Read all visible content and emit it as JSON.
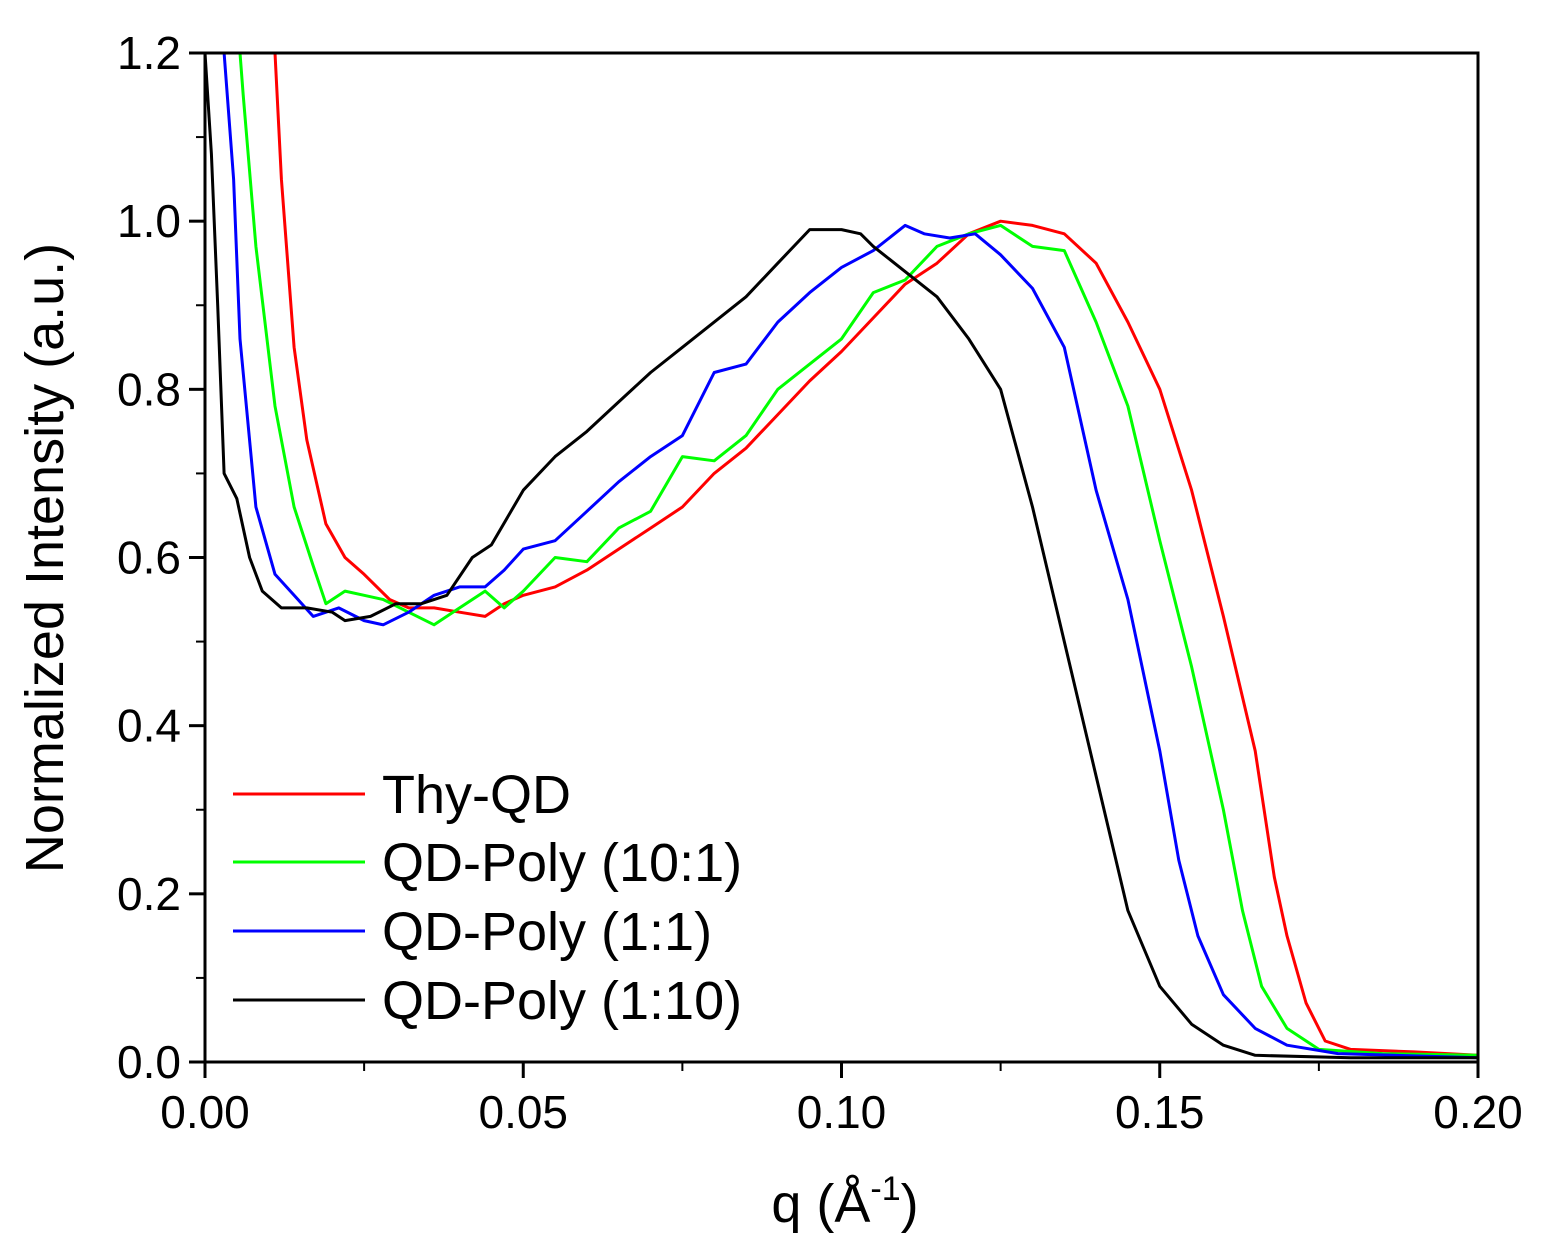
{
  "chart_data": {
    "type": "line",
    "title": "",
    "xlabel": "q (Å⁻¹)",
    "xlabel_parts": {
      "base": "q (",
      "unit": "Å",
      "sup": "-1",
      "close": ")"
    },
    "ylabel": "Normalized Intensity (a.u.)",
    "xlim": [
      0.0,
      0.2
    ],
    "ylim": [
      0.0,
      1.2
    ],
    "xticks": [
      {
        "value": 0.0,
        "label": "0.00"
      },
      {
        "value": 0.05,
        "label": "0.05"
      },
      {
        "value": 0.1,
        "label": "0.10"
      },
      {
        "value": 0.15,
        "label": "0.15"
      },
      {
        "value": 0.2,
        "label": "0.20"
      }
    ],
    "yticks": [
      {
        "value": 0.0,
        "label": "0.0"
      },
      {
        "value": 0.2,
        "label": "0.2"
      },
      {
        "value": 0.4,
        "label": "0.4"
      },
      {
        "value": 0.6,
        "label": "0.6"
      },
      {
        "value": 0.8,
        "label": "0.8"
      },
      {
        "value": 1.0,
        "label": "1.0"
      },
      {
        "value": 1.2,
        "label": "1.2"
      }
    ],
    "x_minor_step": 0.025,
    "y_minor_step": 0.1,
    "grid": false,
    "legend_position": "bottom-left",
    "series": [
      {
        "name": "Thy-QD",
        "color": "#ff0000",
        "points": [
          [
            0.011,
            1.2
          ],
          [
            0.012,
            1.05
          ],
          [
            0.014,
            0.85
          ],
          [
            0.016,
            0.74
          ],
          [
            0.019,
            0.64
          ],
          [
            0.022,
            0.6
          ],
          [
            0.025,
            0.58
          ],
          [
            0.029,
            0.55
          ],
          [
            0.032,
            0.54
          ],
          [
            0.036,
            0.54
          ],
          [
            0.04,
            0.535
          ],
          [
            0.044,
            0.53
          ],
          [
            0.047,
            0.545
          ],
          [
            0.05,
            0.555
          ],
          [
            0.055,
            0.565
          ],
          [
            0.06,
            0.585
          ],
          [
            0.065,
            0.61
          ],
          [
            0.07,
            0.635
          ],
          [
            0.075,
            0.66
          ],
          [
            0.08,
            0.7
          ],
          [
            0.085,
            0.73
          ],
          [
            0.09,
            0.77
          ],
          [
            0.095,
            0.81
          ],
          [
            0.1,
            0.845
          ],
          [
            0.105,
            0.885
          ],
          [
            0.11,
            0.925
          ],
          [
            0.115,
            0.95
          ],
          [
            0.12,
            0.985
          ],
          [
            0.125,
            1.0
          ],
          [
            0.13,
            0.995
          ],
          [
            0.135,
            0.985
          ],
          [
            0.14,
            0.95
          ],
          [
            0.145,
            0.88
          ],
          [
            0.15,
            0.8
          ],
          [
            0.155,
            0.68
          ],
          [
            0.16,
            0.53
          ],
          [
            0.165,
            0.37
          ],
          [
            0.168,
            0.22
          ],
          [
            0.17,
            0.15
          ],
          [
            0.173,
            0.07
          ],
          [
            0.176,
            0.025
          ],
          [
            0.18,
            0.015
          ],
          [
            0.19,
            0.012
          ],
          [
            0.2,
            0.008
          ]
        ]
      },
      {
        "name": "QD-Poly (10:1)",
        "color": "#00ff00",
        "points": [
          [
            0.0055,
            1.2
          ],
          [
            0.006,
            1.15
          ],
          [
            0.008,
            0.97
          ],
          [
            0.011,
            0.78
          ],
          [
            0.014,
            0.66
          ],
          [
            0.017,
            0.59
          ],
          [
            0.019,
            0.545
          ],
          [
            0.022,
            0.56
          ],
          [
            0.025,
            0.555
          ],
          [
            0.028,
            0.55
          ],
          [
            0.032,
            0.535
          ],
          [
            0.036,
            0.52
          ],
          [
            0.04,
            0.54
          ],
          [
            0.044,
            0.56
          ],
          [
            0.047,
            0.54
          ],
          [
            0.05,
            0.56
          ],
          [
            0.055,
            0.6
          ],
          [
            0.06,
            0.595
          ],
          [
            0.065,
            0.635
          ],
          [
            0.07,
            0.655
          ],
          [
            0.075,
            0.72
          ],
          [
            0.08,
            0.715
          ],
          [
            0.085,
            0.745
          ],
          [
            0.09,
            0.8
          ],
          [
            0.095,
            0.83
          ],
          [
            0.1,
            0.86
          ],
          [
            0.105,
            0.915
          ],
          [
            0.11,
            0.93
          ],
          [
            0.115,
            0.97
          ],
          [
            0.12,
            0.985
          ],
          [
            0.125,
            0.995
          ],
          [
            0.13,
            0.97
          ],
          [
            0.135,
            0.965
          ],
          [
            0.14,
            0.88
          ],
          [
            0.145,
            0.78
          ],
          [
            0.15,
            0.62
          ],
          [
            0.155,
            0.47
          ],
          [
            0.16,
            0.3
          ],
          [
            0.163,
            0.18
          ],
          [
            0.166,
            0.09
          ],
          [
            0.17,
            0.04
          ],
          [
            0.175,
            0.015
          ],
          [
            0.185,
            0.01
          ],
          [
            0.2,
            0.008
          ]
        ]
      },
      {
        "name": "QD-Poly (1:1)",
        "color": "#0000ff",
        "points": [
          [
            0.003,
            1.2
          ],
          [
            0.0045,
            1.05
          ],
          [
            0.0055,
            0.86
          ],
          [
            0.008,
            0.66
          ],
          [
            0.011,
            0.58
          ],
          [
            0.014,
            0.555
          ],
          [
            0.017,
            0.53
          ],
          [
            0.021,
            0.54
          ],
          [
            0.025,
            0.525
          ],
          [
            0.028,
            0.52
          ],
          [
            0.032,
            0.535
          ],
          [
            0.036,
            0.555
          ],
          [
            0.04,
            0.565
          ],
          [
            0.044,
            0.565
          ],
          [
            0.047,
            0.585
          ],
          [
            0.05,
            0.61
          ],
          [
            0.055,
            0.62
          ],
          [
            0.06,
            0.655
          ],
          [
            0.065,
            0.69
          ],
          [
            0.07,
            0.72
          ],
          [
            0.075,
            0.745
          ],
          [
            0.08,
            0.82
          ],
          [
            0.085,
            0.83
          ],
          [
            0.09,
            0.88
          ],
          [
            0.095,
            0.915
          ],
          [
            0.1,
            0.945
          ],
          [
            0.105,
            0.965
          ],
          [
            0.11,
            0.995
          ],
          [
            0.113,
            0.985
          ],
          [
            0.117,
            0.98
          ],
          [
            0.121,
            0.985
          ],
          [
            0.125,
            0.96
          ],
          [
            0.13,
            0.92
          ],
          [
            0.135,
            0.85
          ],
          [
            0.14,
            0.68
          ],
          [
            0.145,
            0.55
          ],
          [
            0.15,
            0.37
          ],
          [
            0.153,
            0.24
          ],
          [
            0.156,
            0.15
          ],
          [
            0.16,
            0.08
          ],
          [
            0.165,
            0.04
          ],
          [
            0.17,
            0.02
          ],
          [
            0.178,
            0.01
          ],
          [
            0.2,
            0.005
          ]
        ]
      },
      {
        "name": "QD-Poly (1:10)",
        "color": "#000000",
        "points": [
          [
            0.0,
            1.2
          ],
          [
            0.001,
            1.08
          ],
          [
            0.002,
            0.9
          ],
          [
            0.003,
            0.7
          ],
          [
            0.005,
            0.67
          ],
          [
            0.007,
            0.6
          ],
          [
            0.009,
            0.56
          ],
          [
            0.012,
            0.54
          ],
          [
            0.016,
            0.54
          ],
          [
            0.02,
            0.535
          ],
          [
            0.022,
            0.525
          ],
          [
            0.026,
            0.53
          ],
          [
            0.03,
            0.545
          ],
          [
            0.034,
            0.545
          ],
          [
            0.038,
            0.555
          ],
          [
            0.042,
            0.6
          ],
          [
            0.045,
            0.615
          ],
          [
            0.05,
            0.68
          ],
          [
            0.055,
            0.72
          ],
          [
            0.06,
            0.75
          ],
          [
            0.065,
            0.785
          ],
          [
            0.07,
            0.82
          ],
          [
            0.075,
            0.85
          ],
          [
            0.08,
            0.88
          ],
          [
            0.085,
            0.91
          ],
          [
            0.09,
            0.95
          ],
          [
            0.095,
            0.99
          ],
          [
            0.097,
            0.99
          ],
          [
            0.1,
            0.99
          ],
          [
            0.103,
            0.985
          ],
          [
            0.105,
            0.97
          ],
          [
            0.11,
            0.94
          ],
          [
            0.115,
            0.91
          ],
          [
            0.12,
            0.86
          ],
          [
            0.125,
            0.8
          ],
          [
            0.13,
            0.66
          ],
          [
            0.135,
            0.5
          ],
          [
            0.14,
            0.34
          ],
          [
            0.145,
            0.18
          ],
          [
            0.15,
            0.09
          ],
          [
            0.155,
            0.045
          ],
          [
            0.16,
            0.02
          ],
          [
            0.165,
            0.008
          ],
          [
            0.18,
            0.005
          ],
          [
            0.2,
            0.005
          ]
        ]
      }
    ]
  }
}
